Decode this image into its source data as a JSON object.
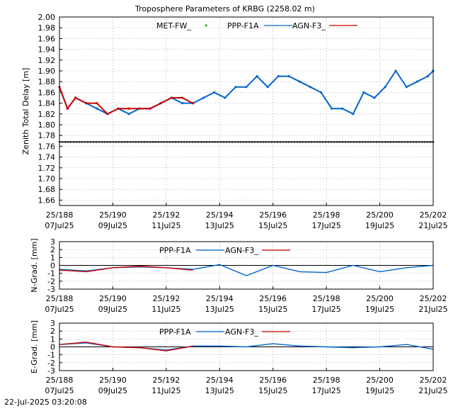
{
  "title": "Troposphere Parameters of KRBG (2258.02 m)",
  "timestamp": "22-Jul-2025 03:20:08",
  "colors": {
    "met": "#00aa00",
    "ppp": "#0066cc",
    "agn": "#cc0000",
    "ref": "#000000",
    "grid": "#888888"
  },
  "x_ticks": [
    {
      "top": "25/188",
      "bottom": "07Jul25"
    },
    {
      "top": "25/190",
      "bottom": "09Jul25"
    },
    {
      "top": "25/192",
      "bottom": "11Jul25"
    },
    {
      "top": "25/194",
      "bottom": "13Jul25"
    },
    {
      "top": "25/196",
      "bottom": "15Jul25"
    },
    {
      "top": "25/198",
      "bottom": "17Jul25"
    },
    {
      "top": "25/200",
      "bottom": "19Jul25"
    },
    {
      "top": "25/202",
      "bottom": "21Jul25"
    }
  ],
  "chart_data": [
    {
      "type": "scatter",
      "ylabel": "Zenith Total Delay [m]",
      "ylim": [
        1.65,
        2.0
      ],
      "xlim": [
        188,
        202
      ],
      "y_ticks": [
        "1.66",
        "1.68",
        "1.70",
        "1.72",
        "1.74",
        "1.76",
        "1.78",
        "1.80",
        "1.82",
        "1.84",
        "1.86",
        "1.88",
        "1.90",
        "1.92",
        "1.94",
        "1.96",
        "1.98",
        "2.00"
      ],
      "legend": [
        "MET-FW_",
        "PPP-F1A",
        "AGN-F3_"
      ],
      "reference_line": 1.768,
      "series": [
        {
          "name": "PPP-F1A",
          "x": [
            188.0,
            188.3,
            188.6,
            189.0,
            189.4,
            189.8,
            190.2,
            190.6,
            191.0,
            191.4,
            191.8,
            192.2,
            192.6,
            193.0,
            193.4,
            193.8,
            194.2,
            194.6,
            195.0,
            195.4,
            195.8,
            196.2,
            196.6,
            197.0,
            197.4,
            197.8,
            198.2,
            198.6,
            199.0,
            199.4,
            199.8,
            200.2,
            200.6,
            201.0,
            201.4,
            201.8,
            202.0
          ],
          "y": [
            1.87,
            1.83,
            1.85,
            1.84,
            1.83,
            1.82,
            1.83,
            1.82,
            1.83,
            1.83,
            1.84,
            1.85,
            1.84,
            1.84,
            1.85,
            1.86,
            1.85,
            1.87,
            1.87,
            1.89,
            1.87,
            1.89,
            1.89,
            1.88,
            1.87,
            1.86,
            1.83,
            1.83,
            1.82,
            1.86,
            1.85,
            1.87,
            1.9,
            1.87,
            1.88,
            1.89,
            1.9
          ]
        },
        {
          "name": "AGN-F3_",
          "x": [
            188.0,
            188.3,
            188.6,
            189.0,
            189.4,
            189.8,
            190.2,
            190.6,
            191.0,
            191.4,
            191.8,
            192.2,
            192.6,
            193.0
          ],
          "y": [
            1.87,
            1.83,
            1.85,
            1.84,
            1.84,
            1.82,
            1.83,
            1.83,
            1.83,
            1.83,
            1.84,
            1.85,
            1.85,
            1.84
          ]
        }
      ]
    },
    {
      "type": "line",
      "ylabel": "N-Grad. [mm]",
      "ylim": [
        -3,
        3
      ],
      "xlim": [
        188,
        202
      ],
      "y_ticks": [
        "3",
        "2",
        "1",
        "0",
        "-1",
        "-2",
        "-3"
      ],
      "legend": [
        "PPP-F1A",
        "AGN-F3_"
      ],
      "series": [
        {
          "name": "PPP-F1A",
          "x": [
            188,
            189,
            190,
            191,
            192,
            193,
            194,
            195,
            196,
            197,
            198,
            199,
            200,
            201,
            202
          ],
          "y": [
            -0.5,
            -0.7,
            -0.3,
            -0.2,
            -0.3,
            -0.5,
            0.1,
            -1.3,
            0.0,
            -0.8,
            -0.9,
            0.0,
            -0.8,
            -0.3,
            0.0
          ]
        },
        {
          "name": "AGN-F3_",
          "x": [
            188,
            189,
            190,
            191,
            192,
            193
          ],
          "y": [
            -0.6,
            -0.8,
            -0.3,
            -0.1,
            -0.3,
            -0.6
          ]
        }
      ]
    },
    {
      "type": "line",
      "ylabel": "E-Grad. [mm]",
      "ylim": [
        -3,
        3
      ],
      "xlim": [
        188,
        202
      ],
      "y_ticks": [
        "3",
        "2",
        "1",
        "0",
        "-1",
        "-2",
        "-3"
      ],
      "legend": [
        "PPP-F1A",
        "AGN-F3_"
      ],
      "series": [
        {
          "name": "PPP-F1A",
          "x": [
            188,
            189,
            190,
            191,
            192,
            193,
            194,
            195,
            196,
            197,
            198,
            199,
            200,
            201,
            202
          ],
          "y": [
            0.3,
            0.5,
            0.0,
            -0.1,
            -0.4,
            0.1,
            0.1,
            0.0,
            0.4,
            0.1,
            0.0,
            -0.1,
            0.0,
            0.3,
            -0.3
          ]
        },
        {
          "name": "AGN-F3_",
          "x": [
            188,
            189,
            190,
            191,
            192,
            193
          ],
          "y": [
            0.3,
            0.6,
            0.0,
            -0.1,
            -0.5,
            0.1
          ]
        }
      ]
    }
  ]
}
